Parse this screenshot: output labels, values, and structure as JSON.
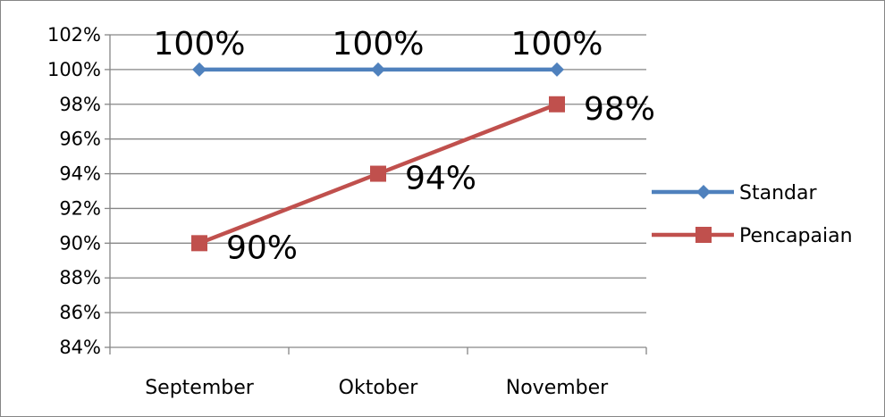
{
  "chart_data": {
    "type": "line",
    "title": "",
    "xlabel": "",
    "ylabel": "",
    "categories": [
      "September",
      "Oktober",
      "November"
    ],
    "ylim": [
      0.84,
      1.02
    ],
    "ytick_step": 0.02,
    "ytick_labels": [
      "84%",
      "86%",
      "88%",
      "90%",
      "92%",
      "94%",
      "96%",
      "98%",
      "100%",
      "102%"
    ],
    "grid": true,
    "legend_position": "right",
    "series": [
      {
        "name": "Standar",
        "values": [
          1.0,
          1.0,
          1.0
        ],
        "labels": [
          "100%",
          "100%",
          "100%"
        ],
        "color": "#4f81bd",
        "marker": "diamond"
      },
      {
        "name": "Pencapaian",
        "values": [
          0.9,
          0.94,
          0.98
        ],
        "labels": [
          "90%",
          "94%",
          "98%"
        ],
        "color": "#c0504d",
        "marker": "square"
      }
    ]
  }
}
